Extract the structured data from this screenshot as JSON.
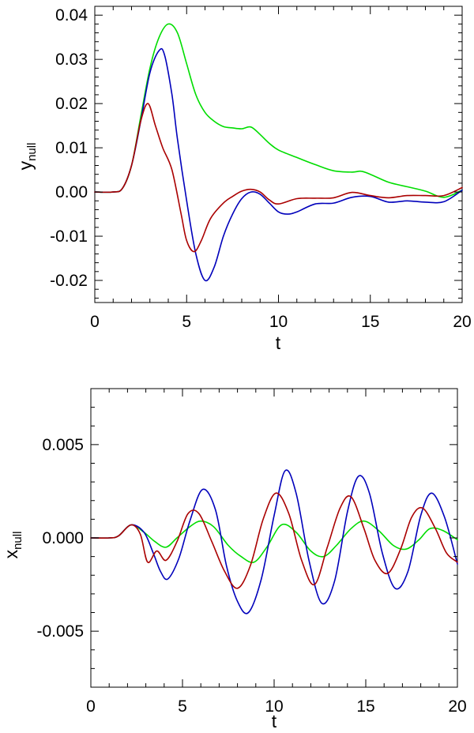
{
  "chart_data": [
    {
      "type": "line",
      "xlabel": "t",
      "ylabel": {
        "main": "y",
        "sub": "null"
      },
      "xlim": [
        0,
        20
      ],
      "ylim": [
        -0.025,
        0.042
      ],
      "x_ticks": [
        0,
        5,
        10,
        15,
        20
      ],
      "x_tick_labels": [
        "0",
        "5",
        "10",
        "15",
        "20"
      ],
      "y_ticks": [
        -0.02,
        -0.01,
        0.0,
        0.01,
        0.02,
        0.03,
        0.04
      ],
      "y_tick_labels": [
        "-0.02",
        "-0.01",
        "0.00",
        "0.01",
        "0.02",
        "0.03",
        "0.04"
      ],
      "grid": false,
      "series": [
        {
          "color": "#00dd00",
          "x": [
            0,
            1.0,
            1.5,
            2.0,
            2.5,
            3.0,
            3.5,
            4.0,
            4.5,
            5.0,
            5.5,
            6.0,
            6.5,
            7.0,
            7.5,
            8.0,
            8.5,
            9.0,
            9.5,
            10.0,
            11.0,
            12.0,
            13.0,
            14.0,
            14.5,
            15.0,
            16.0,
            17.0,
            18.0,
            19.0,
            20.0
          ],
          "y": [
            0,
            0,
            0.0008,
            0.006,
            0.017,
            0.028,
            0.035,
            0.038,
            0.036,
            0.029,
            0.022,
            0.018,
            0.016,
            0.0148,
            0.0145,
            0.0143,
            0.0147,
            0.013,
            0.011,
            0.0095,
            0.0078,
            0.0062,
            0.0048,
            0.0045,
            0.0047,
            0.004,
            0.0022,
            0.0012,
            0.0002,
            -0.0012,
            0.0004
          ]
        },
        {
          "color": "#0000bb",
          "x": [
            0,
            1.0,
            1.5,
            2.0,
            2.5,
            3.0,
            3.5,
            3.8,
            4.2,
            4.5,
            5.0,
            5.5,
            6.0,
            6.5,
            7.0,
            7.5,
            8.0,
            8.5,
            9.0,
            9.5,
            10.0,
            10.5,
            11.0,
            12.0,
            13.0,
            14.0,
            15.0,
            16.0,
            17.0,
            18.0,
            19.0,
            20.0
          ],
          "y": [
            0,
            0,
            0.0008,
            0.006,
            0.016,
            0.027,
            0.032,
            0.031,
            0.022,
            0.012,
            -0.002,
            -0.014,
            -0.02,
            -0.017,
            -0.01,
            -0.005,
            -0.0015,
            0.0,
            -0.0005,
            -0.0025,
            -0.0045,
            -0.005,
            -0.0045,
            -0.0027,
            -0.0025,
            -0.0012,
            -0.001,
            -0.0023,
            -0.002,
            -0.0023,
            -0.0022,
            0.0004
          ]
        },
        {
          "color": "#aa0000",
          "x": [
            0,
            1.0,
            1.5,
            2.0,
            2.5,
            2.9,
            3.3,
            3.7,
            4.2,
            4.7,
            5.0,
            5.4,
            5.8,
            6.3,
            7.0,
            7.5,
            8.0,
            8.5,
            9.0,
            9.5,
            10.0,
            11.0,
            12.0,
            13.0,
            14.0,
            15.0,
            16.0,
            17.0,
            18.0,
            19.0,
            20.0
          ],
          "y": [
            0,
            0,
            0.0008,
            0.006,
            0.016,
            0.02,
            0.015,
            0.01,
            0.005,
            -0.005,
            -0.011,
            -0.0135,
            -0.011,
            -0.006,
            -0.0025,
            -0.001,
            0.0002,
            0.0006,
            0.0,
            -0.0018,
            -0.0027,
            -0.0015,
            -0.0014,
            -0.0013,
            -0.0001,
            -0.0008,
            -0.0013,
            -0.0008,
            -0.0008,
            -0.0008,
            0.001
          ]
        }
      ]
    },
    {
      "type": "line",
      "xlabel": "t",
      "ylabel": {
        "main": "x",
        "sub": "null"
      },
      "xlim": [
        0,
        20
      ],
      "ylim": [
        -0.008,
        0.008
      ],
      "x_ticks": [
        0,
        5,
        10,
        15,
        20
      ],
      "x_tick_labels": [
        "0",
        "5",
        "10",
        "15",
        "20"
      ],
      "y_ticks": [
        -0.005,
        0.0,
        0.005
      ],
      "y_tick_labels": [
        "-0.005",
        "0.000",
        "0.005"
      ],
      "grid": false,
      "series": [
        {
          "color": "#00dd00",
          "x": [
            0,
            1.0,
            1.5,
            2.2,
            2.9,
            3.5,
            4.1,
            4.7,
            5.4,
            6.0,
            6.7,
            7.5,
            8.2,
            8.9,
            9.6,
            10.4,
            11.2,
            12.0,
            12.7,
            13.4,
            14.2,
            14.9,
            15.7,
            16.5,
            17.2,
            17.9,
            18.5,
            19.2,
            20.0
          ],
          "y": [
            0,
            0,
            0.0001,
            0.0007,
            0.0003,
            -0.0002,
            -0.0005,
            0.0,
            0.0006,
            0.0009,
            0.0006,
            -0.0004,
            -0.001,
            -0.0013,
            -0.0005,
            0.0007,
            0.0003,
            -0.0007,
            -0.001,
            -0.0004,
            0.0005,
            0.0009,
            0.0004,
            -0.0004,
            -0.0006,
            -0.0001,
            0.0005,
            0.0004,
            -0.0001
          ]
        },
        {
          "color": "#0000bb",
          "x": [
            0,
            1.0,
            1.5,
            2.2,
            2.9,
            3.4,
            3.8,
            4.2,
            4.8,
            5.4,
            6.1,
            6.8,
            7.4,
            8.0,
            8.6,
            9.3,
            10.0,
            10.6,
            11.2,
            11.9,
            12.6,
            13.3,
            14.0,
            14.6,
            15.2,
            15.9,
            16.6,
            17.3,
            18.0,
            18.6,
            19.3,
            20.0
          ],
          "y": [
            0,
            0,
            0.0001,
            0.0007,
            0.0003,
            -0.0008,
            -0.0018,
            -0.0022,
            -0.0011,
            0.0009,
            0.0026,
            0.0015,
            -0.0015,
            -0.0034,
            -0.004,
            -0.0022,
            0.0012,
            0.0036,
            0.0024,
            -0.0012,
            -0.0035,
            -0.0023,
            0.0014,
            0.0033,
            0.0024,
            -0.0008,
            -0.0027,
            -0.0018,
            0.0012,
            0.0024,
            0.0011,
            -0.0014
          ]
        },
        {
          "color": "#aa0000",
          "x": [
            0,
            1.0,
            1.5,
            2.2,
            2.7,
            3.1,
            3.6,
            4.1,
            4.7,
            5.3,
            5.9,
            6.6,
            7.3,
            8.0,
            8.7,
            9.4,
            10.1,
            10.8,
            11.5,
            12.2,
            12.9,
            13.6,
            14.2,
            14.9,
            15.5,
            16.2,
            16.9,
            17.5,
            18.1,
            18.8,
            19.4,
            20.0
          ],
          "y": [
            0,
            0,
            0.0001,
            0.0007,
            0.0002,
            -0.0013,
            -0.0007,
            -0.0012,
            -0.0002,
            0.0013,
            0.0013,
            -0.0002,
            -0.0018,
            -0.0027,
            -0.0015,
            0.001,
            0.0024,
            0.0013,
            -0.0012,
            -0.0025,
            -0.0005,
            0.0016,
            0.0022,
            0.0005,
            -0.0012,
            -0.0019,
            -0.0006,
            0.0011,
            0.0016,
            0.0005,
            -0.0008,
            -0.0013
          ]
        }
      ]
    }
  ]
}
